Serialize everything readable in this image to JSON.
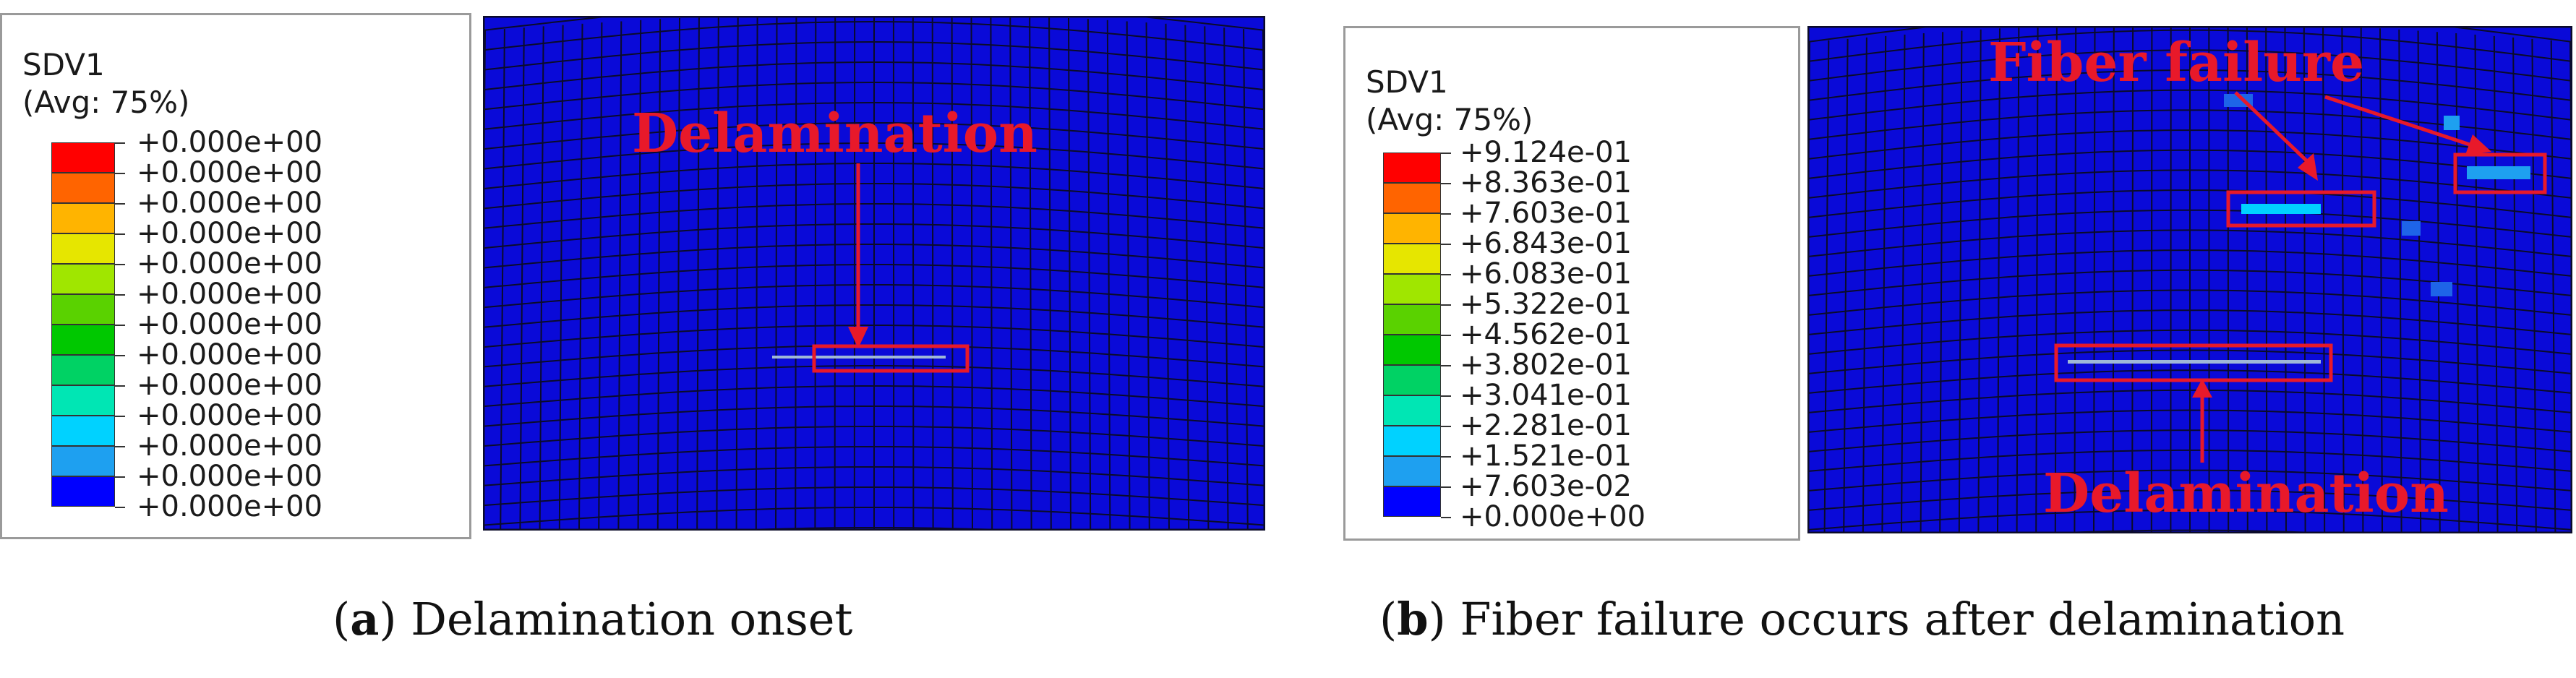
{
  "colors": {
    "mesh_bg": "#0a0ad8",
    "grid": "#0b0b2a",
    "annotation": "#e8192a",
    "contour": [
      "#0000ff",
      "#1e64e8",
      "#1ea0f0",
      "#00d2ff",
      "#00e6b4",
      "#00d264",
      "#00c800",
      "#5ad200",
      "#a0e600",
      "#e6e600",
      "#ffb400",
      "#ff6400",
      "#ff0000"
    ]
  },
  "panel_a": {
    "legend_title": "SDV1",
    "legend_subtitle": "(Avg: 75%)",
    "legend_labels": [
      "+0.000e+00",
      "+0.000e+00",
      "+0.000e+00",
      "+0.000e+00",
      "+0.000e+00",
      "+0.000e+00",
      "+0.000e+00",
      "+0.000e+00",
      "+0.000e+00",
      "+0.000e+00",
      "+0.000e+00",
      "+0.000e+00",
      "+0.000e+00"
    ],
    "annotation": "Delamination",
    "caption_letter": "a",
    "caption_text": " Delamination onset"
  },
  "panel_b": {
    "legend_title": "SDV1",
    "legend_subtitle": "(Avg: 75%)",
    "legend_labels": [
      "+9.124e-01",
      "+8.363e-01",
      "+7.603e-01",
      "+6.843e-01",
      "+6.083e-01",
      "+5.322e-01",
      "+4.562e-01",
      "+3.802e-01",
      "+3.041e-01",
      "+2.281e-01",
      "+1.521e-01",
      "+7.603e-02",
      "+0.000e+00"
    ],
    "annotation_top": "Fiber failure",
    "annotation_bottom": "Delamination",
    "caption_letter": "b",
    "caption_text": " Fiber failure occurs after delamination"
  }
}
